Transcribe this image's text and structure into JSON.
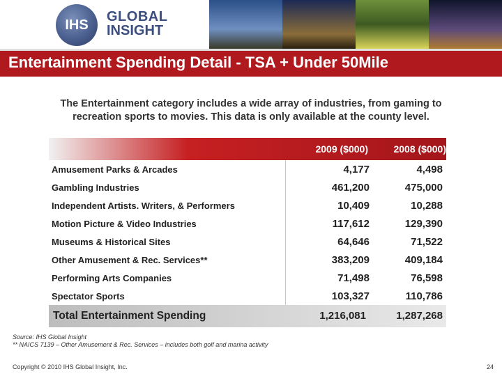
{
  "header": {
    "logo_ihs": "IHS",
    "logo_line1": "GLOBAL",
    "logo_line2": "INSIGHT",
    "photo_icons": [
      "photo-lighthouse-icon",
      "photo-cathedral-icon",
      "photo-garden-icon",
      "photo-city-night-icon"
    ]
  },
  "title": "Entertainment Spending Detail - TSA + Under 50Mile",
  "intro": {
    "line1": "The Entertainment category includes a wide array of industries, from gaming to",
    "line2": "recreation sports to movies. This data is only available at the county level."
  },
  "table": {
    "columns": [
      "2009 ($000)",
      "2008 ($000)"
    ],
    "rows": [
      {
        "label": "Amusement Parks & Arcades",
        "v2009": "4,177",
        "v2008": "4,498"
      },
      {
        "label": "Gambling Industries",
        "v2009": "461,200",
        "v2008": "475,000"
      },
      {
        "label": "Independent Artists. Writers, & Performers",
        "v2009": "10,409",
        "v2008": "10,288"
      },
      {
        "label": "Motion Picture & Video Industries",
        "v2009": "117,612",
        "v2008": "129,390"
      },
      {
        "label": "Museums & Historical Sites",
        "v2009": "64,646",
        "v2008": "71,522"
      },
      {
        "label": "Other Amusement & Rec. Services**",
        "v2009": "383,209",
        "v2008": "409,184"
      },
      {
        "label": "Performing Arts Companies",
        "v2009": "71,498",
        "v2008": "76,598"
      },
      {
        "label": "Spectator Sports",
        "v2009": "103,327",
        "v2008": "110,786"
      }
    ],
    "total": {
      "label": "Total Entertainment Spending",
      "v2009": "1,216,081",
      "v2008": "1,287,268"
    }
  },
  "notes": {
    "source": "Source: IHS Global Insight",
    "naics": "** NAICS 7139 – Other Amusement & Rec. Services – includes both golf and marina activity"
  },
  "footer": {
    "copyright": "Copyright © 2010 IHS Global Insight, Inc.",
    "page_number": "24"
  },
  "colors": {
    "title_band": "#b01a1f",
    "header_gradient_start": "#f1f1f1",
    "header_gradient_end": "#a3161b",
    "total_row": "#d7d7d7",
    "logo_blue": "#3b4e7e"
  }
}
